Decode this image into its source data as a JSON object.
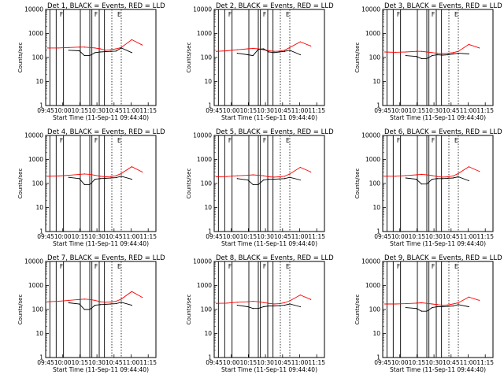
{
  "chart_data": [
    {
      "type": "line",
      "title": "Det 1, BLACK = Events, RED = LLD",
      "xlabel": "Start Time (11-Sep-11 09:44:40)",
      "ylabel": "Counts/sec",
      "x_ticks": [
        "09:45",
        "10:00",
        "10:15",
        "10:30",
        "10:45",
        "11:00",
        "11:15"
      ],
      "y_ticks": [
        "1",
        "10",
        "100",
        "1000",
        "10000"
      ],
      "yscale": "log",
      "ylim": [
        1,
        10000
      ],
      "x": [
        0,
        10,
        20,
        30,
        35,
        40,
        45,
        50,
        55,
        60,
        65,
        70,
        80,
        90
      ],
      "series": [
        {
          "name": "RED = LLD",
          "color": "#ff0000",
          "values": [
            250,
            250,
            260,
            270,
            270,
            260,
            250,
            230,
            200,
            210,
            230,
            260,
            550,
            330
          ]
        },
        {
          "name": "BLACK = Events",
          "color": "#000000",
          "values": [
            null,
            null,
            200,
            190,
            120,
            120,
            160,
            170,
            175,
            180,
            185,
            250,
            160,
            null
          ]
        }
      ],
      "markers": [
        "F",
        "F",
        "E"
      ]
    },
    {
      "type": "line",
      "title": "Det 2, BLACK = Events, RED = LLD",
      "xlabel": "Start Time (11-Sep-11 09:44:40)",
      "ylabel": "Counts/sec",
      "x_ticks": [
        "09:45",
        "10:00",
        "10:15",
        "10:30",
        "10:45",
        "11:00",
        "11:15"
      ],
      "y_ticks": [
        "1",
        "10",
        "100",
        "1000",
        "10000"
      ],
      "yscale": "log",
      "ylim": [
        1,
        10000
      ],
      "x": [
        0,
        10,
        20,
        30,
        35,
        40,
        45,
        50,
        55,
        60,
        65,
        70,
        80,
        90
      ],
      "series": [
        {
          "name": "RED = LLD",
          "color": "#ff0000",
          "values": [
            180,
            190,
            210,
            230,
            240,
            230,
            210,
            190,
            180,
            185,
            200,
            260,
            450,
            300
          ]
        },
        {
          "name": "BLACK = Events",
          "color": "#000000",
          "values": [
            null,
            null,
            150,
            130,
            120,
            220,
            230,
            170,
            160,
            170,
            180,
            200,
            130,
            null
          ]
        }
      ],
      "markers": [
        "F",
        "F",
        "E"
      ]
    },
    {
      "type": "line",
      "title": "Det 3, BLACK = Events, RED = LLD",
      "xlabel": "Start Time (11-Sep-11 09:44:40)",
      "ylabel": "Counts/sec",
      "x_ticks": [
        "09:45",
        "10:00",
        "10:15",
        "10:30",
        "10:45",
        "11:00",
        "11:15"
      ],
      "y_ticks": [
        "1",
        "10",
        "100",
        "1000",
        "10000"
      ],
      "yscale": "log",
      "ylim": [
        1,
        10000
      ],
      "x": [
        0,
        10,
        20,
        30,
        35,
        40,
        45,
        50,
        55,
        60,
        65,
        70,
        80,
        90
      ],
      "series": [
        {
          "name": "RED = LLD",
          "color": "#ff0000",
          "values": [
            170,
            165,
            170,
            180,
            180,
            170,
            160,
            150,
            145,
            150,
            160,
            180,
            350,
            250
          ]
        },
        {
          "name": "BLACK = Events",
          "color": "#000000",
          "values": [
            null,
            null,
            120,
            110,
            90,
            90,
            120,
            130,
            125,
            130,
            140,
            150,
            140,
            null
          ]
        }
      ],
      "markers": [
        "F",
        "F",
        "E"
      ]
    },
    {
      "type": "line",
      "title": "Det 4, BLACK = Events, RED = LLD",
      "xlabel": "Start Time (11-Sep-11 09:44:40)",
      "ylabel": "Counts/sec",
      "x_ticks": [
        "09:45",
        "10:00",
        "10:15",
        "10:30",
        "10:45",
        "11:00",
        "11:15"
      ],
      "y_ticks": [
        "1",
        "10",
        "100",
        "1000",
        "10000"
      ],
      "yscale": "log",
      "ylim": [
        1,
        10000
      ],
      "x": [
        0,
        10,
        20,
        30,
        35,
        40,
        45,
        50,
        55,
        60,
        65,
        70,
        80,
        90
      ],
      "series": [
        {
          "name": "RED = LLD",
          "color": "#ff0000",
          "values": [
            200,
            205,
            220,
            240,
            250,
            240,
            220,
            200,
            190,
            195,
            210,
            260,
            500,
            300
          ]
        },
        {
          "name": "BLACK = Events",
          "color": "#000000",
          "values": [
            null,
            null,
            180,
            160,
            90,
            90,
            150,
            160,
            165,
            170,
            175,
            200,
            150,
            null
          ]
        }
      ],
      "markers": [
        "F",
        "F",
        "E"
      ]
    },
    {
      "type": "line",
      "title": "Det 5, BLACK = Events, RED = LLD",
      "xlabel": "Start Time (11-Sep-11 09:44:40)",
      "ylabel": "Counts/sec",
      "x_ticks": [
        "09:45",
        "10:00",
        "10:15",
        "10:30",
        "10:45",
        "11:00",
        "11:15"
      ],
      "y_ticks": [
        "1",
        "10",
        "100",
        "1000",
        "10000"
      ],
      "yscale": "log",
      "ylim": [
        1,
        10000
      ],
      "x": [
        0,
        10,
        20,
        30,
        35,
        40,
        45,
        50,
        55,
        60,
        65,
        70,
        80,
        90
      ],
      "series": [
        {
          "name": "RED = LLD",
          "color": "#ff0000",
          "values": [
            190,
            195,
            210,
            220,
            230,
            220,
            210,
            190,
            185,
            190,
            200,
            250,
            470,
            300
          ]
        },
        {
          "name": "BLACK = Events",
          "color": "#000000",
          "values": [
            null,
            null,
            160,
            140,
            90,
            90,
            140,
            150,
            150,
            155,
            160,
            180,
            140,
            null
          ]
        }
      ],
      "markers": [
        "F",
        "F",
        "E"
      ]
    },
    {
      "type": "line",
      "title": "Det 6, BLACK = Events, RED = LLD",
      "xlabel": "Start Time (11-Sep-11 09:44:40)",
      "ylabel": "Counts/sec",
      "x_ticks": [
        "09:45",
        "10:00",
        "10:15",
        "10:30",
        "10:45",
        "11:00",
        "11:15"
      ],
      "y_ticks": [
        "1",
        "10",
        "100",
        "1000",
        "10000"
      ],
      "yscale": "log",
      "ylim": [
        1,
        10000
      ],
      "x": [
        0,
        10,
        20,
        30,
        35,
        40,
        45,
        50,
        55,
        60,
        65,
        70,
        80,
        90
      ],
      "series": [
        {
          "name": "RED = LLD",
          "color": "#ff0000",
          "values": [
            200,
            200,
            215,
            230,
            240,
            230,
            215,
            195,
            185,
            190,
            205,
            260,
            500,
            320
          ]
        },
        {
          "name": "BLACK = Events",
          "color": "#000000",
          "values": [
            null,
            null,
            170,
            150,
            95,
            95,
            150,
            160,
            160,
            165,
            170,
            190,
            130,
            null
          ]
        }
      ],
      "markers": [
        "F",
        "F",
        "E"
      ]
    },
    {
      "type": "line",
      "title": "Det 7, BLACK = Events, RED = LLD",
      "xlabel": "Start Time (11-Sep-11 09:44:40)",
      "ylabel": "Counts/sec",
      "x_ticks": [
        "09:45",
        "10:00",
        "10:15",
        "10:30",
        "10:45",
        "11:00",
        "11:15"
      ],
      "y_ticks": [
        "1",
        "10",
        "100",
        "1000",
        "10000"
      ],
      "yscale": "log",
      "ylim": [
        1,
        10000
      ],
      "x": [
        0,
        10,
        20,
        30,
        35,
        40,
        45,
        50,
        55,
        60,
        65,
        70,
        80,
        90
      ],
      "series": [
        {
          "name": "RED = LLD",
          "color": "#ff0000",
          "values": [
            210,
            220,
            240,
            260,
            270,
            260,
            240,
            210,
            200,
            205,
            220,
            270,
            560,
            320
          ]
        },
        {
          "name": "BLACK = Events",
          "color": "#000000",
          "values": [
            null,
            null,
            190,
            170,
            100,
            100,
            150,
            160,
            165,
            170,
            175,
            200,
            150,
            null
          ]
        }
      ],
      "markers": [
        "F",
        "F",
        "E"
      ]
    },
    {
      "type": "line",
      "title": "Det 8, BLACK = Events, RED = LLD",
      "xlabel": "Start Time (11-Sep-11 09:44:40)",
      "ylabel": "Counts/sec",
      "x_ticks": [
        "09:45",
        "10:00",
        "10:15",
        "10:30",
        "10:45",
        "11:00",
        "11:15"
      ],
      "y_ticks": [
        "1",
        "10",
        "100",
        "1000",
        "10000"
      ],
      "yscale": "log",
      "ylim": [
        1,
        10000
      ],
      "x": [
        0,
        10,
        20,
        30,
        35,
        40,
        45,
        50,
        55,
        60,
        65,
        70,
        80,
        90
      ],
      "series": [
        {
          "name": "RED = LLD",
          "color": "#ff0000",
          "values": [
            180,
            185,
            200,
            210,
            220,
            210,
            195,
            180,
            170,
            175,
            190,
            230,
            400,
            260
          ]
        },
        {
          "name": "BLACK = Events",
          "color": "#000000",
          "values": [
            null,
            null,
            150,
            130,
            110,
            110,
            130,
            140,
            140,
            145,
            150,
            170,
            130,
            null
          ]
        }
      ],
      "markers": [
        "F",
        "F",
        "E"
      ]
    },
    {
      "type": "line",
      "title": "Det 9, BLACK = Events, RED = LLD",
      "xlabel": "Start Time (11-Sep-11 09:44:40)",
      "ylabel": "Counts/sec",
      "x_ticks": [
        "09:45",
        "10:00",
        "10:15",
        "10:30",
        "10:45",
        "11:00",
        "11:15"
      ],
      "y_ticks": [
        "1",
        "10",
        "100",
        "1000",
        "10000"
      ],
      "yscale": "log",
      "ylim": [
        1,
        10000
      ],
      "x": [
        0,
        10,
        20,
        30,
        35,
        40,
        45,
        50,
        55,
        60,
        65,
        70,
        80,
        90
      ],
      "series": [
        {
          "name": "RED = LLD",
          "color": "#ff0000",
          "values": [
            170,
            170,
            175,
            185,
            190,
            180,
            170,
            160,
            150,
            155,
            170,
            190,
            330,
            240
          ]
        },
        {
          "name": "BLACK = Events",
          "color": "#000000",
          "values": [
            null,
            null,
            120,
            110,
            85,
            85,
            120,
            130,
            130,
            135,
            140,
            160,
            130,
            null
          ]
        }
      ],
      "markers": [
        "F",
        "F",
        "E"
      ]
    }
  ]
}
